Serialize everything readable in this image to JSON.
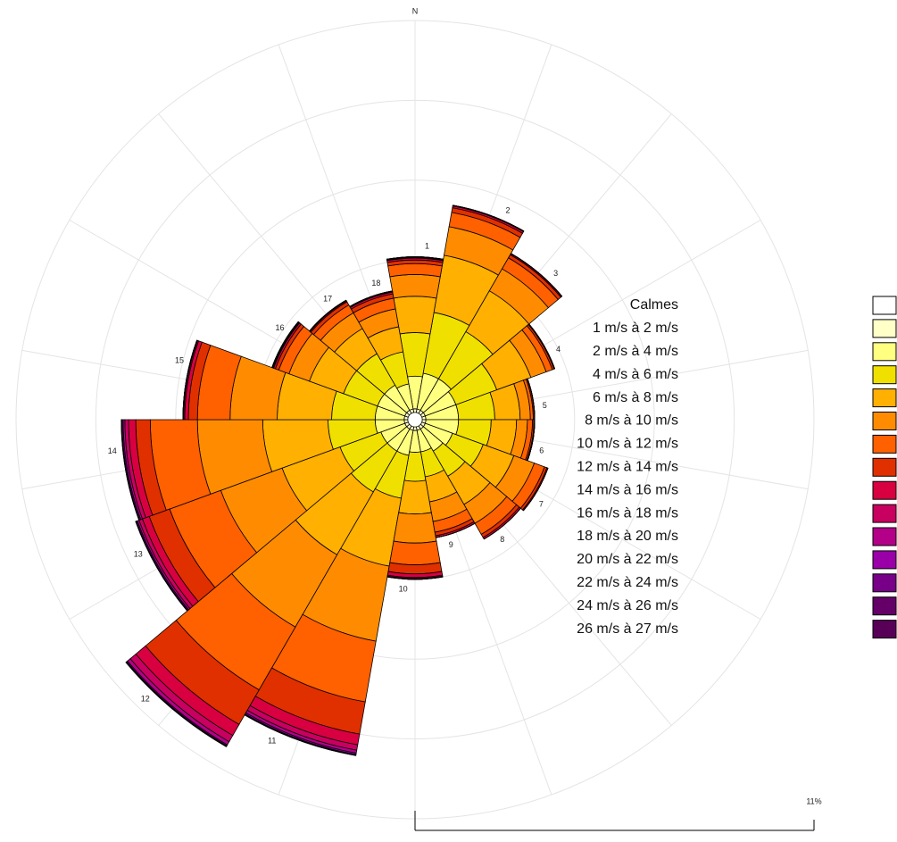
{
  "chart_data": {
    "type": "windrose",
    "north_label": "N",
    "categories": [
      "1",
      "2",
      "3",
      "4",
      "5",
      "6",
      "7",
      "8",
      "9",
      "10",
      "11",
      "12",
      "13",
      "14",
      "15",
      "16",
      "17",
      "18"
    ],
    "calm": {
      "name": "Calmes",
      "color": "#ffffff",
      "value": 0.2
    },
    "rlim": [
      0,
      11
    ],
    "rticks": [
      2.2,
      4.4,
      6.6,
      8.8,
      11
    ],
    "scale": {
      "value": 11,
      "label": "11%"
    },
    "series": [
      {
        "name": "1 m/s à  2 m/s",
        "color": "#ffffc8",
        "values": [
          0.3,
          0.3,
          0.3,
          0.3,
          0.3,
          0.3,
          0.3,
          0.3,
          0.3,
          0.3,
          0.3,
          0.3,
          0.3,
          0.3,
          0.3,
          0.3,
          0.3,
          0.3
        ]
      },
      {
        "name": "2 m/s à  4 m/s",
        "color": "#ffff80",
        "values": [
          0.9,
          1.0,
          1.0,
          0.9,
          0.9,
          0.9,
          0.8,
          0.7,
          0.6,
          0.6,
          0.7,
          0.7,
          0.7,
          0.8,
          0.8,
          0.8,
          0.8,
          0.7
        ]
      },
      {
        "name": "4 m/s à  6 m/s",
        "color": "#f0e000",
        "values": [
          1.2,
          1.7,
          1.5,
          1.2,
          1.0,
          0.9,
          0.9,
          0.8,
          0.7,
          0.8,
          1.2,
          1.3,
          1.2,
          1.3,
          1.2,
          1.0,
          1.0,
          0.9
        ]
      },
      {
        "name": "6 m/s à  8 m/s",
        "color": "#ffb000",
        "values": [
          1.0,
          1.6,
          1.3,
          1.0,
          0.7,
          0.7,
          0.9,
          0.9,
          0.7,
          0.9,
          1.9,
          2.0,
          1.7,
          1.8,
          1.5,
          1.0,
          0.8,
          0.7
        ]
      },
      {
        "name": "8 m/s à  10 m/s",
        "color": "#ff8c00",
        "values": [
          0.6,
          0.8,
          0.7,
          0.45,
          0.28,
          0.3,
          0.6,
          0.6,
          0.55,
          0.8,
          2.1,
          2.3,
          1.8,
          1.8,
          1.3,
          0.6,
          0.5,
          0.5
        ]
      },
      {
        "name": "10 m/s à  12 m/s",
        "color": "#ff6000",
        "values": [
          0.3,
          0.4,
          0.35,
          0.18,
          0.08,
          0.14,
          0.3,
          0.35,
          0.3,
          0.6,
          1.7,
          2.0,
          1.5,
          1.3,
          0.9,
          0.3,
          0.25,
          0.3
        ]
      },
      {
        "name": "12 m/s à  14 m/s",
        "color": "#e03000",
        "values": [
          0.1,
          0.13,
          0.1,
          0.05,
          0.03,
          0.04,
          0.07,
          0.1,
          0.1,
          0.25,
          0.9,
          1.1,
          0.6,
          0.4,
          0.25,
          0.1,
          0.1,
          0.12
        ]
      },
      {
        "name": "14 m/s à  16 m/s",
        "color": "#d80040",
        "values": [
          0.05,
          0.05,
          0.03,
          0.02,
          0.01,
          0.02,
          0.03,
          0.05,
          0.05,
          0.1,
          0.3,
          0.35,
          0.2,
          0.2,
          0.1,
          0.05,
          0.03,
          0.05
        ]
      },
      {
        "name": "16 m/s à  18 m/s",
        "color": "#c80060",
        "values": [
          0.02,
          0.02,
          0.01,
          0,
          0,
          0,
          0,
          0,
          0,
          0.03,
          0.15,
          0.2,
          0.1,
          0.1,
          0.03,
          0.02,
          0.01,
          0.02
        ]
      },
      {
        "name": "18 m/s à  20 m/s",
        "color": "#b40088",
        "values": [
          0.01,
          0,
          0,
          0,
          0,
          0,
          0,
          0,
          0,
          0.02,
          0.08,
          0.1,
          0.05,
          0.05,
          0.01,
          0.02,
          0.01,
          0.01
        ]
      },
      {
        "name": "20 m/s à  22 m/s",
        "color": "#9a00a8",
        "values": [
          0.01,
          0,
          0,
          0,
          0,
          0,
          0,
          0,
          0,
          0,
          0.04,
          0.03,
          0.03,
          0.03,
          0.01,
          0.01,
          0,
          0
        ]
      },
      {
        "name": "22 m/s à  24 m/s",
        "color": "#780088",
        "values": [
          0,
          0,
          0,
          0,
          0,
          0,
          0,
          0,
          0,
          0,
          0.02,
          0.01,
          0.01,
          0.01,
          0,
          0,
          0,
          0
        ]
      },
      {
        "name": "24 m/s à  26 m/s",
        "color": "#640068",
        "values": [
          0,
          0,
          0,
          0,
          0,
          0,
          0,
          0,
          0,
          0,
          0.01,
          0.01,
          0.01,
          0.01,
          0,
          0,
          0,
          0
        ]
      },
      {
        "name": "26 m/s à  27 m/s",
        "color": "#580058",
        "values": [
          0,
          0,
          0,
          0,
          0,
          0,
          0,
          0,
          0,
          0,
          0,
          0.01,
          0,
          0,
          0,
          0,
          0,
          0
        ]
      }
    ]
  }
}
